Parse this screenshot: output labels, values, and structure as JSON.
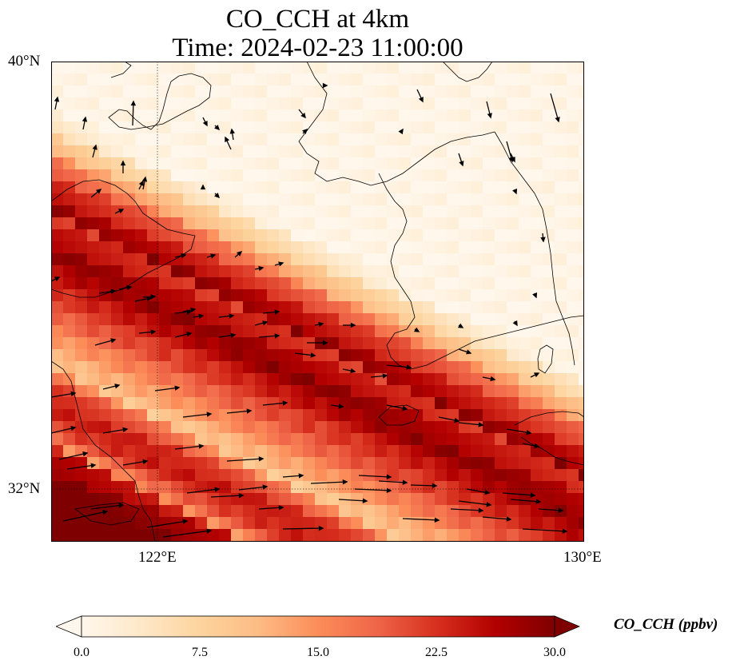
{
  "title": {
    "line1": "CO_CCH at 4km",
    "line2": "Time: 2024-02-23 11:00:00"
  },
  "axes": {
    "lat_ticks": [
      "40°N",
      "32°N"
    ],
    "lon_ticks": [
      "122°E",
      "130°E"
    ]
  },
  "colorbar": {
    "label": "CO_CCH (ppbv)",
    "ticks": [
      "0.0",
      "7.5",
      "15.0",
      "22.5",
      "30.0"
    ],
    "min": 0,
    "max": 30,
    "colormap": "OrRd",
    "extend": "both"
  },
  "map": {
    "lon_range": [
      120,
      130
    ],
    "lat_range": [
      31,
      40
    ],
    "gridlines": "dotted at 122°E and 32°N",
    "background": "#fff5e8"
  }
}
